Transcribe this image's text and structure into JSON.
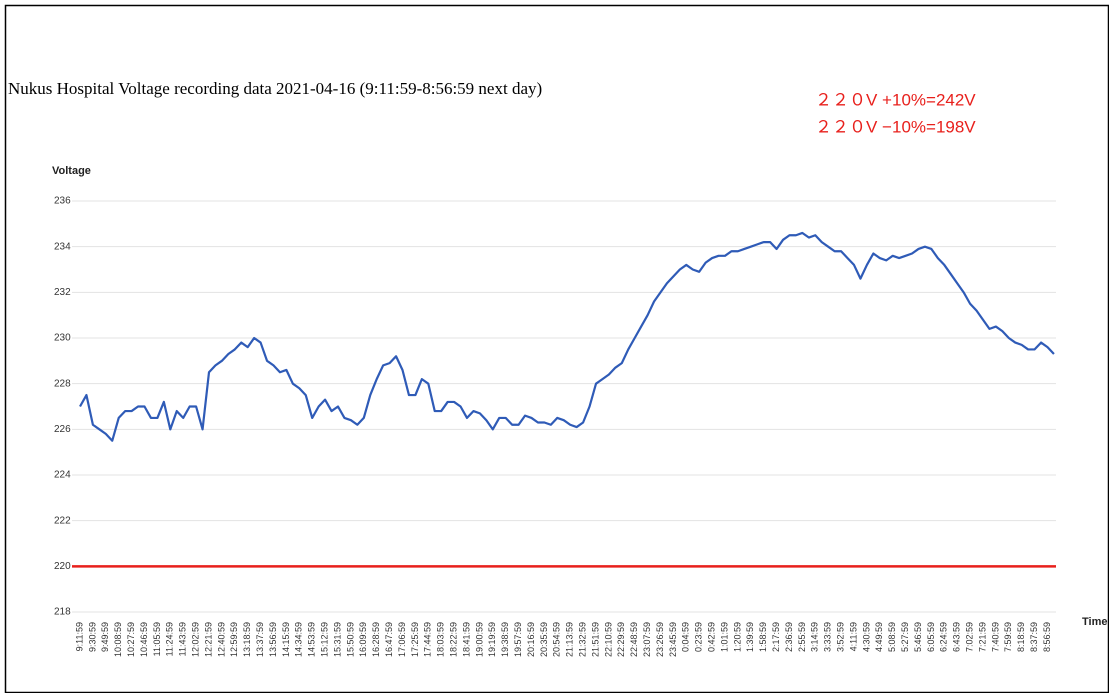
{
  "chart_data": {
    "type": "line",
    "title": "Nukus Hospital Voltage recording data 2021-04-16 (9:11:59-8:56:59 next day)",
    "annotations": [
      "２２０V +10%=242V",
      "２２０V −10%=198V"
    ],
    "y_label": "Voltage",
    "x_label": "Time",
    "categories": [
      "9:11:59",
      null,
      "9:30:59",
      null,
      "9:49:59",
      null,
      "10:08:59",
      null,
      "10:27:59",
      null,
      "10:46:59",
      null,
      "11:05:59",
      null,
      "11:24:59",
      null,
      "11:43:59",
      null,
      "12:02:59",
      null,
      "12:21:59",
      null,
      "12:40:59",
      null,
      "12:59:59",
      null,
      "13:18:59",
      null,
      "13:37:59",
      null,
      "13:56:59",
      null,
      "14:15:59",
      null,
      "14:34:59",
      null,
      "14:53:59",
      null,
      "15:12:59",
      null,
      "15:31:59",
      null,
      "15:50:59",
      null,
      "16:09:59",
      null,
      "16:28:59",
      null,
      "16:47:59",
      null,
      "17:06:59",
      null,
      "17:25:59",
      null,
      "17:44:59",
      null,
      "18:03:59",
      null,
      "18:22:59",
      null,
      "18:41:59",
      null,
      "19:00:59",
      null,
      "19:19:59",
      null,
      "19:38:59",
      null,
      "19:57:59",
      null,
      "20:16:59",
      null,
      "20:35:59",
      null,
      "20:54:59",
      null,
      "21:13:59",
      null,
      "21:32:59",
      null,
      "21:51:59",
      null,
      "22:10:59",
      null,
      "22:29:59",
      null,
      "22:48:59",
      null,
      "23:07:59",
      null,
      "23:26:59",
      null,
      "23:45:59",
      null,
      "0:04:59",
      null,
      "0:23:59",
      null,
      "0:42:59",
      null,
      "1:01:59",
      null,
      "1:20:59",
      null,
      "1:39:59",
      null,
      "1:58:59",
      null,
      "2:17:59",
      null,
      "2:36:59",
      null,
      "2:55:59",
      null,
      "3:14:59",
      null,
      "3:33:59",
      null,
      "3:52:59",
      null,
      "4:11:59",
      null,
      "4:30:59",
      null,
      "4:49:59",
      null,
      "5:08:59",
      null,
      "5:27:59",
      null,
      "5:46:59",
      null,
      "6:05:59",
      null,
      "6:24:59",
      null,
      "6:43:59",
      null,
      "7:02:59",
      null,
      "7:21:59",
      null,
      "7:40:59",
      null,
      "7:59:59",
      null,
      "8:18:59",
      null,
      "8:37:59",
      null,
      "8:56:59",
      null
    ],
    "values": [
      227,
      227.5,
      226.2,
      226,
      225.8,
      225.5,
      226.5,
      226.8,
      226.8,
      227,
      227,
      226.5,
      226.5,
      227.2,
      226,
      226.8,
      226.5,
      227,
      227,
      226,
      228.5,
      228.8,
      229,
      229.3,
      229.5,
      229.8,
      229.6,
      230,
      229.8,
      229,
      228.8,
      228.5,
      228.6,
      228,
      227.8,
      227.5,
      226.5,
      227,
      227.3,
      226.8,
      227,
      226.5,
      226.4,
      226.2,
      226.5,
      227.5,
      228.2,
      228.8,
      228.9,
      229.2,
      228.6,
      227.5,
      227.5,
      228.2,
      228,
      226.8,
      226.8,
      227.2,
      227.2,
      227,
      226.5,
      226.8,
      226.7,
      226.4,
      226,
      226.5,
      226.5,
      226.2,
      226.2,
      226.6,
      226.5,
      226.3,
      226.3,
      226.2,
      226.5,
      226.4,
      226.2,
      226.1,
      226.3,
      227,
      228,
      228.2,
      228.4,
      228.7,
      228.9,
      229.5,
      230,
      230.5,
      231,
      231.6,
      232,
      232.4,
      232.7,
      233,
      233.2,
      233,
      232.9,
      233.3,
      233.5,
      233.6,
      233.6,
      233.8,
      233.8,
      233.9,
      234,
      234.1,
      234.2,
      234.2,
      233.9,
      234.3,
      234.5,
      234.5,
      234.6,
      234.4,
      234.5,
      234.2,
      234,
      233.8,
      233.8,
      233.5,
      233.2,
      232.6,
      233.2,
      233.7,
      233.5,
      233.4,
      233.6,
      233.5,
      233.6,
      233.7,
      233.9,
      234,
      233.9,
      233.5,
      233.2,
      232.8,
      232.4,
      232,
      231.5,
      231.2,
      230.8,
      230.4,
      230.5,
      230.3,
      230,
      229.8,
      229.7,
      229.5,
      229.5,
      229.8,
      229.6,
      229.3
    ],
    "color": "#2f5bb7",
    "reference_line": {
      "value": 220,
      "color": "#e8201c"
    },
    "ylim": [
      218,
      236
    ],
    "yticks": [
      218,
      220,
      222,
      224,
      226,
      228,
      230,
      232,
      234,
      236
    ],
    "grid": true
  }
}
